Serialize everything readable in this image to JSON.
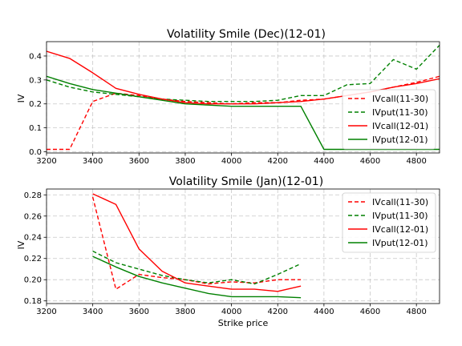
{
  "chart_data": [
    {
      "type": "line",
      "title": "Volatility Smile (Dec)(12-01)",
      "xlabel": "",
      "ylabel": "IV",
      "xlim": [
        3200,
        4900
      ],
      "ylim": [
        -0.005,
        0.46
      ],
      "xticks": [
        3200,
        3400,
        3600,
        3800,
        4000,
        4200,
        4400,
        4600,
        4800
      ],
      "yticks": [
        0.0,
        0.1,
        0.2,
        0.3,
        0.4
      ],
      "ytick_labels": [
        "0.0",
        "0.1",
        "0.2",
        "0.3",
        "0.4"
      ],
      "grid": true,
      "legend_position": "lower-right",
      "series": [
        {
          "name": "IVcall(11-30)",
          "color": "#ff0000",
          "dash": "dashed",
          "x": [
            3200,
            3300,
            3400,
            3500,
            3600,
            3700,
            3800,
            3900,
            4000,
            4100,
            4200,
            4300,
            4400,
            4500,
            4600,
            4700,
            4800,
            4900
          ],
          "y": [
            0.01,
            0.01,
            0.21,
            0.245,
            0.235,
            0.22,
            0.21,
            0.205,
            0.2,
            0.205,
            0.205,
            0.215,
            0.22,
            0.235,
            0.25,
            0.27,
            0.29,
            0.315
          ]
        },
        {
          "name": "IVput(11-30)",
          "color": "#008000",
          "dash": "dashed",
          "x": [
            3200,
            3300,
            3400,
            3500,
            3600,
            3700,
            3800,
            3900,
            4000,
            4100,
            4200,
            4300,
            4400,
            4500,
            4600,
            4700,
            4800,
            4900
          ],
          "y": [
            0.3,
            0.27,
            0.25,
            0.24,
            0.23,
            0.22,
            0.215,
            0.21,
            0.21,
            0.21,
            0.215,
            0.235,
            0.235,
            0.28,
            0.285,
            0.385,
            0.345,
            0.445
          ]
        },
        {
          "name": "IVcall(12-01)",
          "color": "#ff0000",
          "dash": "solid",
          "x": [
            3200,
            3300,
            3400,
            3500,
            3600,
            3700,
            3800,
            3900,
            4000,
            4100,
            4200,
            4300,
            4400,
            4500,
            4600,
            4700,
            4800,
            4900
          ],
          "y": [
            0.42,
            0.39,
            0.33,
            0.265,
            0.24,
            0.22,
            0.205,
            0.2,
            0.2,
            0.2,
            0.205,
            0.21,
            0.22,
            0.235,
            0.25,
            0.27,
            0.285,
            0.305
          ]
        },
        {
          "name": "IVput(12-01)",
          "color": "#008000",
          "dash": "solid",
          "x": [
            3200,
            3300,
            3400,
            3500,
            3600,
            3700,
            3800,
            3900,
            4000,
            4100,
            4200,
            4300,
            4400,
            4500,
            4600,
            4700,
            4800,
            4900
          ],
          "y": [
            0.315,
            0.285,
            0.26,
            0.245,
            0.23,
            0.215,
            0.2,
            0.195,
            0.19,
            0.19,
            0.19,
            0.19,
            0.01,
            0.01,
            0.01,
            0.01,
            0.01,
            0.01
          ]
        }
      ]
    },
    {
      "type": "line",
      "title": "Volatility Smile (Jan)(12-01)",
      "xlabel": "Strike price",
      "ylabel": "IV",
      "xlim": [
        3200,
        4900
      ],
      "ylim": [
        0.1775,
        0.2855
      ],
      "xticks": [
        3200,
        3400,
        3600,
        3800,
        4000,
        4200,
        4400,
        4600,
        4800
      ],
      "yticks": [
        0.18,
        0.2,
        0.22,
        0.24,
        0.26,
        0.28
      ],
      "ytick_labels": [
        "0.18",
        "0.20",
        "0.22",
        "0.24",
        "0.26",
        "0.28"
      ],
      "grid": true,
      "legend_position": "upper-right",
      "series": [
        {
          "name": "IVcall(11-30)",
          "color": "#ff0000",
          "dash": "dashed",
          "x": [
            3400,
            3500,
            3600,
            3700,
            3800,
            3900,
            4000,
            4100,
            4200,
            4300
          ],
          "y": [
            0.278,
            0.191,
            0.205,
            0.202,
            0.2,
            0.196,
            0.198,
            0.197,
            0.2,
            0.2
          ]
        },
        {
          "name": "IVput(11-30)",
          "color": "#008000",
          "dash": "dashed",
          "x": [
            3400,
            3500,
            3600,
            3700,
            3800,
            3900,
            4000,
            4100,
            4200,
            4300
          ],
          "y": [
            0.227,
            0.216,
            0.21,
            0.204,
            0.2,
            0.197,
            0.2,
            0.196,
            0.205,
            0.215
          ]
        },
        {
          "name": "IVcall(12-01)",
          "color": "#ff0000",
          "dash": "solid",
          "x": [
            3400,
            3500,
            3600,
            3700,
            3800,
            3900,
            4000,
            4100,
            4200,
            4300
          ],
          "y": [
            0.281,
            0.271,
            0.229,
            0.208,
            0.197,
            0.194,
            0.191,
            0.191,
            0.189,
            0.194
          ]
        },
        {
          "name": "IVput(12-01)",
          "color": "#008000",
          "dash": "solid",
          "x": [
            3400,
            3500,
            3600,
            3700,
            3800,
            3900,
            4000,
            4100,
            4200,
            4300
          ],
          "y": [
            0.222,
            0.212,
            0.203,
            0.197,
            0.192,
            0.187,
            0.184,
            0.184,
            0.184,
            0.183
          ]
        }
      ]
    }
  ]
}
